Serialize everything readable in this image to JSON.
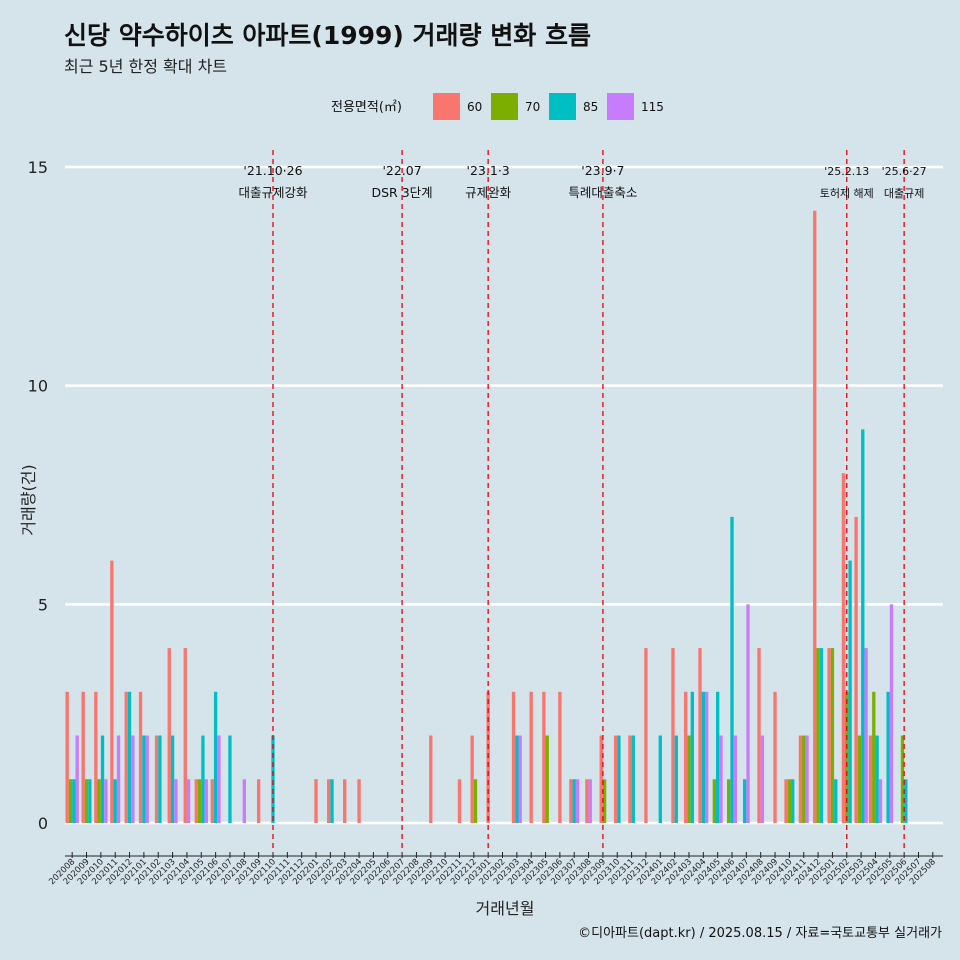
{
  "header": {
    "title": "신당 약수하이츠 아파트(1999) 거래량 변화 흐름",
    "subtitle": "최근 5년 한정 확대 차트"
  },
  "caption": "©디아파트(dapt.kr) / 2025.08.15 / 자료=국토교통부 실거래가",
  "chart_data": {
    "type": "bar",
    "xlabel": "거래년월",
    "ylabel": "거래량(건)",
    "ylim": [
      0,
      15
    ],
    "yticks": [
      0,
      5,
      10,
      15
    ],
    "grid": true,
    "legend": {
      "title": "전용면적(㎡)",
      "position": "top"
    },
    "categories": [
      "202008",
      "202009",
      "202010",
      "202011",
      "202012",
      "202101",
      "202102",
      "202103",
      "202104",
      "202105",
      "202106",
      "202107",
      "202108",
      "202109",
      "202110",
      "202111",
      "202112",
      "202201",
      "202202",
      "202203",
      "202204",
      "202205",
      "202206",
      "202207",
      "202208",
      "202209",
      "202210",
      "202211",
      "202212",
      "202301",
      "202302",
      "202303",
      "202304",
      "202305",
      "202306",
      "202307",
      "202308",
      "202309",
      "202310",
      "202311",
      "202312",
      "202401",
      "202402",
      "202403",
      "202404",
      "202405",
      "202406",
      "202407",
      "202408",
      "202409",
      "202410",
      "202411",
      "202412",
      "202501",
      "202502",
      "202503",
      "202504",
      "202505",
      "202506",
      "202507",
      "202508"
    ],
    "series": [
      {
        "name": "60",
        "color": "#f8766d",
        "values": [
          3,
          3,
          3,
          6,
          3,
          3,
          2,
          4,
          4,
          1,
          1,
          0,
          0,
          1,
          0,
          0,
          0,
          1,
          1,
          1,
          1,
          0,
          0,
          0,
          0,
          2,
          0,
          1,
          2,
          3,
          0,
          3,
          3,
          3,
          3,
          1,
          1,
          2,
          2,
          2,
          4,
          0,
          4,
          3,
          4,
          0,
          0,
          0,
          4,
          3,
          1,
          2,
          14,
          4,
          8,
          7,
          2,
          0,
          0,
          0,
          0
        ]
      },
      {
        "name": "70",
        "color": "#7cae00",
        "values": [
          1,
          1,
          1,
          0,
          0,
          0,
          0,
          0,
          0,
          1,
          0,
          0,
          0,
          0,
          0,
          0,
          0,
          0,
          0,
          0,
          0,
          0,
          0,
          0,
          0,
          0,
          0,
          0,
          1,
          0,
          0,
          0,
          0,
          2,
          0,
          0,
          0,
          1,
          0,
          0,
          0,
          0,
          0,
          2,
          0,
          1,
          1,
          0,
          0,
          0,
          1,
          2,
          4,
          4,
          3,
          2,
          3,
          0,
          2,
          0,
          0
        ]
      },
      {
        "name": "85",
        "color": "#00bfc4",
        "values": [
          1,
          1,
          2,
          1,
          3,
          2,
          2,
          2,
          0,
          2,
          3,
          2,
          0,
          0,
          2,
          0,
          0,
          0,
          1,
          0,
          0,
          0,
          0,
          0,
          0,
          0,
          0,
          0,
          0,
          0,
          0,
          2,
          0,
          0,
          0,
          1,
          0,
          0,
          2,
          2,
          0,
          2,
          2,
          3,
          3,
          3,
          7,
          1,
          0,
          0,
          1,
          0,
          4,
          1,
          6,
          9,
          2,
          3,
          1,
          0,
          0
        ]
      },
      {
        "name": "115",
        "color": "#c77cff",
        "values": [
          2,
          0,
          1,
          2,
          2,
          2,
          0,
          1,
          1,
          1,
          2,
          0,
          1,
          0,
          0,
          0,
          0,
          0,
          0,
          0,
          0,
          0,
          0,
          0,
          0,
          0,
          0,
          0,
          0,
          0,
          0,
          2,
          0,
          0,
          0,
          1,
          1,
          0,
          0,
          0,
          0,
          0,
          0,
          0,
          3,
          2,
          2,
          5,
          2,
          0,
          0,
          2,
          0,
          0,
          0,
          4,
          1,
          5,
          0,
          0,
          0
        ]
      }
    ],
    "annotations": [
      {
        "month": "202110",
        "date": "'21.10·26",
        "label": "대출규제강화"
      },
      {
        "month": "202207",
        "date": "'22.07",
        "label": "DSR 3단계"
      },
      {
        "month": "202301",
        "date": "'23.1·3",
        "label": "규제완화"
      },
      {
        "month": "202309",
        "date": "'23.9·7",
        "label": "특례대출축소"
      },
      {
        "month": "202502",
        "date": "'25.2.13",
        "label": "토허제 해제"
      },
      {
        "month": "202506",
        "date": "'25.6·27",
        "label": "대출규제"
      }
    ]
  }
}
